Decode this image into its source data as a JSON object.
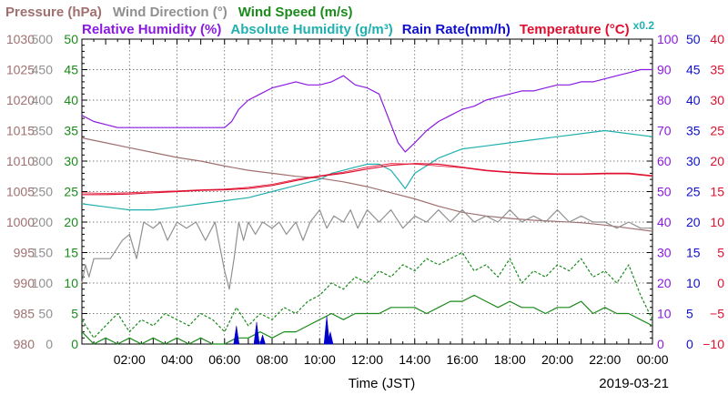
{
  "chart_data": {
    "type": "line",
    "legend": {
      "row1": [
        {
          "label": "Pressure (hPa)",
          "color": "#a07070"
        },
        {
          "label": "Wind Direction (°)",
          "color": "#909090"
        },
        {
          "label": "Wind Speed (m/s)",
          "color": "#1a8a1a"
        }
      ],
      "row2": [
        {
          "label": "Relative Humidity (%)",
          "color": "#8a1ae0"
        },
        {
          "label": "Absolute Humidity (g/m³)",
          "color": "#20b0b0"
        },
        {
          "label": "Rain Rate(mm/h)",
          "color": "#1010cc"
        },
        {
          "label": "Temperature (°C)",
          "color": "#e01030"
        }
      ],
      "abs_factor": {
        "label": "x0.2",
        "color": "#20b0b0"
      }
    },
    "xlabel": "Time (JST)",
    "date": "2019-03-21",
    "x_range_hours": [
      0,
      24
    ],
    "x_ticks": [
      "02:00",
      "04:00",
      "06:00",
      "08:00",
      "10:00",
      "12:00",
      "14:00",
      "16:00",
      "18:00",
      "20:00",
      "22:00",
      "00:00"
    ],
    "grid": true,
    "y_axes": {
      "pressure": {
        "color": "#a07070",
        "range": [
          980,
          1030
        ],
        "ticks": [
          "980",
          "985",
          "990",
          "995",
          "1000",
          "1005",
          "1010",
          "1015",
          "1020",
          "1025",
          "1030"
        ]
      },
      "wind_direction": {
        "color": "#909090",
        "range": [
          0,
          500
        ],
        "ticks": [
          "0",
          "50",
          "100",
          "150",
          "200",
          "250",
          "300",
          "350",
          "400",
          "450",
          "500"
        ]
      },
      "wind_speed": {
        "color": "#1a8a1a",
        "range": [
          0,
          50
        ],
        "ticks": [
          "0",
          "5",
          "10",
          "15",
          "20",
          "25",
          "30",
          "35",
          "40",
          "45",
          "50"
        ]
      },
      "humidity": {
        "color": "#8a1ae0",
        "range": [
          0,
          100
        ],
        "ticks": [
          "0",
          "10",
          "20",
          "30",
          "40",
          "50",
          "60",
          "70",
          "80",
          "90",
          "100"
        ]
      },
      "rain_rate": {
        "color": "#1010cc",
        "range": [
          0,
          50
        ],
        "ticks": [
          "0",
          "5",
          "10",
          "15",
          "20",
          "25",
          "30",
          "35",
          "40",
          "45",
          "50"
        ]
      },
      "temperature": {
        "color": "#e01030",
        "range": [
          -10,
          40
        ],
        "ticks": [
          "−10",
          "−5",
          "0",
          "5",
          "10",
          "15",
          "20",
          "25",
          "30",
          "35",
          "40"
        ]
      }
    },
    "series": [
      {
        "key": "pressure",
        "axis": "pressure",
        "color": "#a07070",
        "x": [
          0,
          1,
          2,
          3,
          4,
          5,
          6,
          7,
          8,
          9,
          10,
          11,
          12,
          13,
          14,
          15,
          16,
          17,
          18,
          19,
          20,
          21,
          22,
          23,
          24
        ],
        "y": [
          1013.8,
          1013.0,
          1012.2,
          1011.4,
          1010.6,
          1010.0,
          1009.2,
          1008.5,
          1008.0,
          1007.5,
          1007.2,
          1006.6,
          1005.8,
          1004.8,
          1003.8,
          1002.6,
          1001.6,
          1001.0,
          1000.6,
          1000.3,
          1000.1,
          999.9,
          999.5,
          999.0,
          998.5
        ]
      },
      {
        "key": "wind_direction",
        "axis": "wind_direction",
        "color": "#909090",
        "dashed": false,
        "x": [
          0,
          0.15,
          0.3,
          0.5,
          0.8,
          1.2,
          1.7,
          2.0,
          2.3,
          2.6,
          3.0,
          3.3,
          3.6,
          4.0,
          4.4,
          4.8,
          5.2,
          5.6,
          6.0,
          6.2,
          6.4,
          6.6,
          6.8,
          7.0,
          7.3,
          7.6,
          8.0,
          8.3,
          8.6,
          9.0,
          9.3,
          9.6,
          10.0,
          10.3,
          10.6,
          11.0,
          11.3,
          11.6,
          12.0,
          12.5,
          13.0,
          13.5,
          14.0,
          14.5,
          15.0,
          15.5,
          16.0,
          16.5,
          17.0,
          17.5,
          18.0,
          18.5,
          19.0,
          19.5,
          20.0,
          20.5,
          21.0,
          21.5,
          22.0,
          22.5,
          23.0,
          23.5,
          24.0
        ],
        "y": [
          100,
          130,
          110,
          140,
          140,
          140,
          170,
          180,
          140,
          200,
          190,
          200,
          170,
          200,
          190,
          200,
          170,
          200,
          120,
          90,
          140,
          200,
          170,
          200,
          180,
          200,
          190,
          200,
          180,
          200,
          170,
          200,
          220,
          190,
          210,
          200,
          220,
          190,
          220,
          200,
          220,
          190,
          210,
          200,
          220,
          200,
          220,
          200,
          210,
          200,
          220,
          200,
          210,
          200,
          220,
          200,
          210,
          200,
          200,
          190,
          200,
          190,
          190
        ]
      },
      {
        "key": "wind_max",
        "axis": "wind_speed",
        "color": "#1a8a1a",
        "dashed": true,
        "x": [
          0,
          0.5,
          1,
          1.5,
          2,
          2.5,
          3,
          3.5,
          4,
          4.5,
          5,
          5.5,
          6,
          6.5,
          7,
          7.5,
          8,
          8.5,
          9,
          9.5,
          10,
          10.5,
          11,
          11.5,
          12,
          12.5,
          13,
          13.5,
          14,
          14.5,
          15,
          15.5,
          16,
          16.5,
          17,
          17.5,
          18,
          18.5,
          19,
          19.5,
          20,
          20.5,
          21,
          21.5,
          22,
          22.5,
          23,
          23.5,
          24
        ],
        "y": [
          4,
          1,
          3,
          5,
          2,
          4,
          3,
          5,
          4,
          3,
          5,
          4,
          2,
          6,
          3,
          5,
          4,
          6,
          5,
          7,
          8,
          10,
          9,
          11,
          10,
          12,
          11,
          13,
          12,
          14,
          13,
          14,
          15,
          12,
          13,
          11,
          14,
          10,
          12,
          11,
          13,
          12,
          14,
          11,
          12,
          10,
          13,
          8,
          4
        ]
      },
      {
        "key": "wind_speed",
        "axis": "wind_speed",
        "color": "#1a8a1a",
        "dashed": false,
        "x": [
          0,
          0.5,
          1,
          1.5,
          2,
          2.5,
          3,
          3.5,
          4,
          4.5,
          5,
          5.5,
          6,
          6.5,
          7,
          7.5,
          8,
          8.5,
          9,
          9.5,
          10,
          10.5,
          11,
          11.5,
          12,
          12.5,
          13,
          13.5,
          14,
          14.5,
          15,
          15.5,
          16,
          16.5,
          17,
          17.5,
          18,
          18.5,
          19,
          19.5,
          20,
          20.5,
          21,
          21.5,
          22,
          22.5,
          23,
          23.5,
          24
        ],
        "y": [
          2,
          0,
          1,
          0,
          1,
          0,
          1,
          0,
          1,
          0,
          1,
          0,
          0,
          1,
          1,
          2,
          1,
          2,
          2,
          3,
          4,
          5,
          4,
          5,
          5,
          5,
          6,
          6,
          6,
          5,
          6,
          7,
          7,
          8,
          7,
          6,
          7,
          6,
          6,
          5,
          6,
          6,
          7,
          5,
          6,
          5,
          5,
          4,
          3
        ]
      },
      {
        "key": "rel_humidity",
        "axis": "humidity",
        "color": "#8a1ae0",
        "x": [
          0,
          0.5,
          1,
          1.5,
          2,
          2.5,
          3,
          3.5,
          4,
          4.5,
          5,
          5.5,
          6,
          6.3,
          6.6,
          7.0,
          7.5,
          8.0,
          8.5,
          9.0,
          9.5,
          10.0,
          10.5,
          11.0,
          11.5,
          12.0,
          12.5,
          13.0,
          13.3,
          13.6,
          14.0,
          14.5,
          15.0,
          15.5,
          16.0,
          16.5,
          17.0,
          17.5,
          18.0,
          18.5,
          19.0,
          19.5,
          20.0,
          20.5,
          21.0,
          21.5,
          22.0,
          22.5,
          23.0,
          23.5,
          24.0
        ],
        "y": [
          75,
          73,
          72,
          71,
          71,
          71,
          71,
          71,
          71,
          71,
          71,
          71,
          71,
          73,
          77,
          80,
          82,
          84,
          85,
          86,
          85,
          85,
          86,
          88,
          85,
          84,
          82,
          72,
          66,
          63,
          66,
          70,
          73,
          75,
          77,
          78,
          80,
          81,
          82,
          83,
          83,
          84,
          85,
          85,
          86,
          86,
          87,
          88,
          89,
          90,
          90
        ]
      },
      {
        "key": "abs_humidity",
        "axis": "humidity",
        "color": "#20b0b0",
        "x": [
          0,
          1,
          2,
          3,
          4,
          5,
          6,
          7,
          8,
          9,
          10,
          10.5,
          11,
          11.5,
          12,
          12.5,
          13,
          13.3,
          13.6,
          14,
          15,
          16,
          17,
          18,
          19,
          20,
          21,
          22,
          23,
          24
        ],
        "y": [
          46,
          45,
          44,
          44,
          45,
          46,
          47,
          48,
          50,
          52,
          54,
          56,
          57,
          58,
          59,
          59,
          57,
          54,
          51,
          56,
          61,
          64,
          65,
          66,
          67,
          68,
          69,
          70,
          69,
          68
        ]
      },
      {
        "key": "temperature",
        "axis": "temperature",
        "color": "#e01030",
        "x": [
          0,
          1,
          2,
          3,
          4,
          5,
          6,
          7,
          8,
          9,
          10,
          11,
          12,
          13,
          14,
          15,
          16,
          17,
          18,
          19,
          20,
          21,
          22,
          23,
          24
        ],
        "y": [
          14.5,
          14.5,
          14.6,
          14.8,
          15.0,
          15.2,
          15.3,
          15.5,
          16.0,
          16.8,
          17.5,
          18.0,
          18.7,
          19.3,
          19.6,
          19.5,
          19.0,
          18.5,
          18.2,
          18.0,
          17.9,
          17.9,
          18.0,
          18.0,
          17.6
        ]
      },
      {
        "key": "temperature_ref",
        "axis": "temperature",
        "color": "#e01030",
        "thin": true,
        "x": [
          0,
          1,
          2,
          3,
          4,
          5,
          6,
          7,
          8,
          9,
          10,
          11,
          12,
          13,
          14,
          15,
          16,
          17,
          18,
          19,
          20,
          21,
          22,
          23,
          24
        ],
        "y": [
          14.8,
          14.7,
          14.8,
          15.0,
          15.1,
          15.3,
          15.4,
          15.7,
          16.2,
          17.0,
          17.6,
          18.2,
          19.0,
          19.6,
          19.5,
          19.2,
          18.9,
          18.4,
          18.1,
          17.9,
          17.8,
          17.8,
          17.9,
          17.9,
          17.5
        ]
      }
    ],
    "rain_events": [
      {
        "x": 6.5,
        "y": 3.0
      },
      {
        "x": 7.35,
        "y": 3.6
      },
      {
        "x": 7.6,
        "y": 1.5
      },
      {
        "x": 10.3,
        "y": 4.6
      },
      {
        "x": 10.45,
        "y": 2.0
      }
    ]
  }
}
